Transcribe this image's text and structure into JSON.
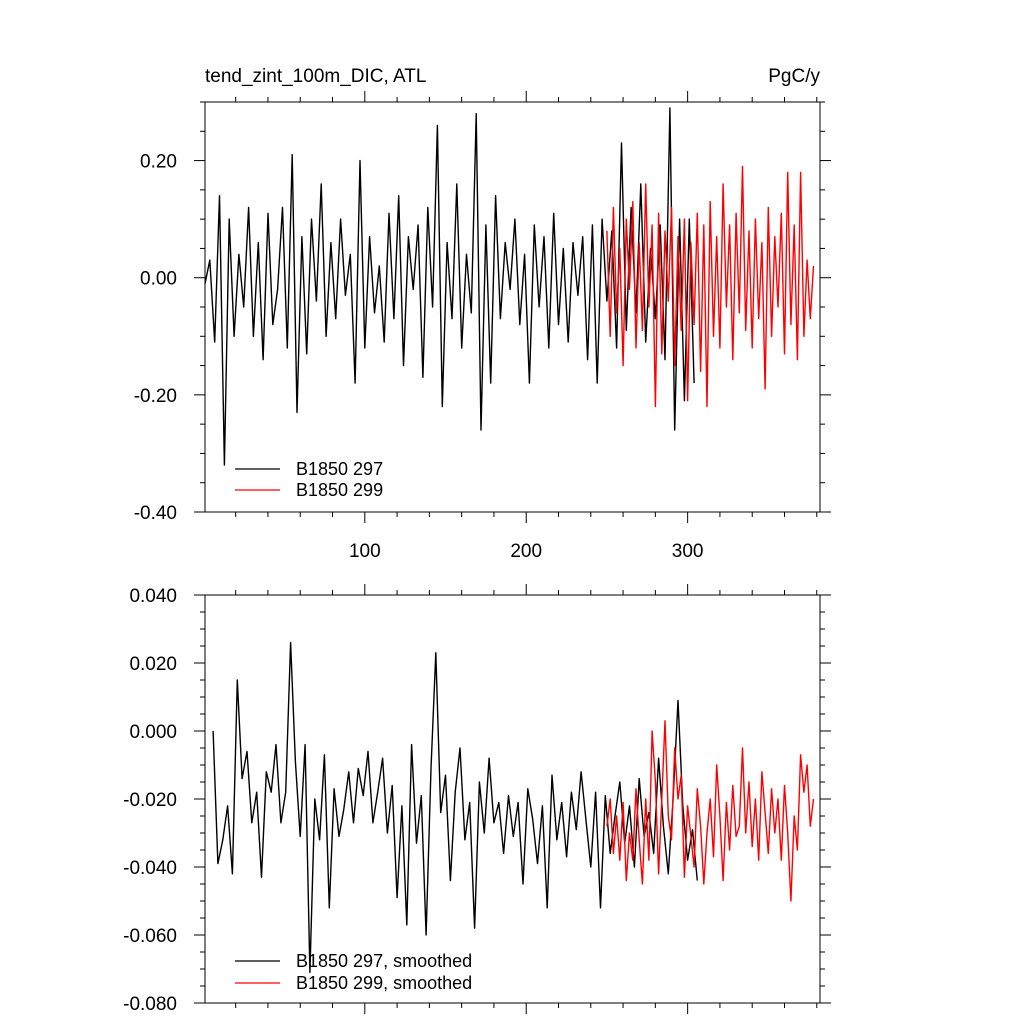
{
  "chart_data": [
    {
      "type": "line",
      "title_left": "tend_zint_100m_DIC, ATL",
      "title_right": "PgC/y",
      "xlim": [
        1,
        382
      ],
      "ylim": [
        -0.4,
        0.3
      ],
      "x_major_ticks": [
        100,
        200,
        300
      ],
      "x_minor_step": 20,
      "x_tick_labels": [
        "100",
        "200",
        "300"
      ],
      "x_tick_labels_position": "bottom",
      "y_major_ticks": [
        -0.4,
        -0.2,
        0.0,
        0.2
      ],
      "y_minor_step": 0.05,
      "y_tick_labels": [
        "-0.40",
        "-0.20",
        "0.00",
        "0.20"
      ],
      "legend_position": "bottom-left",
      "series": [
        {
          "name": "B1850 297",
          "color": "#000000",
          "x_start": 1,
          "x_step": 3,
          "values": [
            -0.01,
            0.03,
            -0.11,
            0.14,
            -0.32,
            0.1,
            -0.1,
            0.04,
            -0.05,
            0.12,
            -0.1,
            0.06,
            -0.14,
            0.11,
            -0.08,
            -0.02,
            0.12,
            -0.12,
            0.21,
            -0.23,
            0.07,
            -0.13,
            0.1,
            -0.04,
            0.16,
            -0.1,
            0.06,
            -0.07,
            0.1,
            -0.03,
            0.04,
            -0.18,
            0.2,
            -0.12,
            0.07,
            -0.06,
            0.02,
            -0.11,
            0.11,
            -0.07,
            0.14,
            -0.15,
            0.07,
            -0.02,
            0.09,
            -0.17,
            0.12,
            -0.05,
            0.26,
            -0.22,
            0.06,
            -0.07,
            0.16,
            -0.12,
            0.04,
            -0.06,
            0.28,
            -0.26,
            0.09,
            -0.18,
            0.14,
            -0.07,
            0.06,
            -0.02,
            0.1,
            -0.08,
            0.04,
            -0.18,
            0.09,
            -0.05,
            0.07,
            -0.12,
            0.11,
            -0.08,
            0.05,
            -0.11,
            0.06,
            -0.03,
            0.07,
            -0.14,
            0.09,
            -0.18,
            0.1,
            -0.04,
            0.08,
            -0.12,
            0.23,
            -0.09,
            0.12,
            -0.06,
            0.16,
            -0.11,
            0.05,
            -0.07,
            0.09,
            -0.14,
            0.29,
            -0.26,
            0.1,
            -0.21,
            0.1,
            -0.18
          ]
        },
        {
          "name": "B1850 299",
          "color": "#ff0000",
          "x_start": 250,
          "x_step": 2,
          "values": [
            0.08,
            -0.1,
            0.12,
            -0.06,
            0.05,
            -0.15,
            0.1,
            -0.02,
            0.13,
            -0.12,
            0.06,
            -0.09,
            0.16,
            -0.05,
            0.09,
            -0.22,
            0.11,
            -0.13,
            0.08,
            -0.04,
            0.12,
            -0.15,
            0.07,
            -0.09,
            0.1,
            -0.21,
            0.06,
            -0.08,
            0.11,
            -0.16,
            0.09,
            -0.22,
            0.13,
            -0.1,
            0.07,
            -0.12,
            0.16,
            -0.05,
            0.09,
            -0.14,
            0.11,
            -0.06,
            0.19,
            -0.09,
            0.08,
            -0.12,
            0.1,
            -0.07,
            0.06,
            -0.19,
            0.12,
            -0.1,
            0.07,
            -0.05,
            0.11,
            -0.13,
            0.18,
            -0.08,
            0.09,
            -0.14,
            0.18,
            -0.1,
            0.03,
            -0.07,
            0.02
          ]
        }
      ]
    },
    {
      "type": "line",
      "xlim": [
        1,
        382
      ],
      "ylim": [
        -0.08,
        0.04
      ],
      "x_major_ticks": [
        100,
        200,
        300
      ],
      "x_minor_step": 20,
      "x_tick_labels": [],
      "y_major_ticks": [
        -0.08,
        -0.06,
        -0.04,
        -0.02,
        0.0,
        0.02,
        0.04
      ],
      "y_minor_step": 0.005,
      "y_tick_labels": [
        "-0.080",
        "-0.060",
        "-0.040",
        "-0.020",
        "0.000",
        "0.020",
        "0.040"
      ],
      "legend_position": "bottom-left",
      "series": [
        {
          "name": "B1850 297, smoothed",
          "color": "#000000",
          "x_start": 6,
          "x_step": 3,
          "values": [
            0.0,
            -0.039,
            -0.032,
            -0.022,
            -0.042,
            0.015,
            -0.014,
            -0.006,
            -0.027,
            -0.018,
            -0.043,
            -0.012,
            -0.018,
            -0.004,
            -0.027,
            -0.018,
            0.026,
            -0.009,
            -0.031,
            -0.004,
            -0.071,
            -0.02,
            -0.032,
            -0.007,
            -0.052,
            -0.017,
            -0.031,
            -0.023,
            -0.012,
            -0.027,
            -0.011,
            -0.019,
            -0.006,
            -0.027,
            -0.018,
            -0.008,
            -0.03,
            -0.016,
            -0.049,
            -0.022,
            -0.057,
            -0.004,
            -0.033,
            -0.019,
            -0.06,
            -0.011,
            0.023,
            -0.024,
            -0.013,
            -0.044,
            -0.018,
            -0.005,
            -0.032,
            -0.021,
            -0.058,
            -0.015,
            -0.03,
            -0.008,
            -0.027,
            -0.021,
            -0.036,
            -0.019,
            -0.031,
            -0.021,
            -0.045,
            -0.017,
            -0.026,
            -0.039,
            -0.022,
            -0.052,
            -0.013,
            -0.032,
            -0.021,
            -0.037,
            -0.018,
            -0.029,
            -0.012,
            -0.026,
            -0.04,
            -0.018,
            -0.052,
            -0.019,
            -0.036,
            -0.025,
            -0.015,
            -0.033,
            -0.022,
            -0.04,
            -0.014,
            -0.031,
            -0.024,
            -0.036,
            -0.008,
            -0.028,
            -0.042,
            -0.02,
            0.009,
            -0.022,
            -0.038,
            -0.029,
            -0.044
          ]
        },
        {
          "name": "B1850 299, smoothed",
          "color": "#ff0000",
          "x_start": 250,
          "x_step": 2,
          "values": [
            -0.028,
            -0.02,
            -0.036,
            -0.025,
            -0.038,
            -0.021,
            -0.044,
            -0.03,
            -0.038,
            -0.017,
            -0.032,
            -0.045,
            -0.02,
            -0.038,
            0.0,
            -0.015,
            -0.042,
            -0.02,
            0.003,
            -0.025,
            -0.032,
            -0.005,
            -0.02,
            -0.013,
            -0.043,
            -0.022,
            -0.031,
            -0.04,
            -0.017,
            -0.028,
            -0.045,
            -0.03,
            -0.02,
            -0.037,
            -0.01,
            -0.025,
            -0.044,
            -0.021,
            -0.035,
            -0.016,
            -0.031,
            -0.028,
            -0.005,
            -0.03,
            -0.015,
            -0.034,
            -0.02,
            -0.038,
            -0.012,
            -0.024,
            -0.036,
            -0.017,
            -0.03,
            -0.02,
            -0.038,
            -0.016,
            -0.03,
            -0.05,
            -0.025,
            -0.035,
            -0.007,
            -0.018,
            -0.01,
            -0.028,
            -0.02
          ]
        }
      ]
    }
  ]
}
